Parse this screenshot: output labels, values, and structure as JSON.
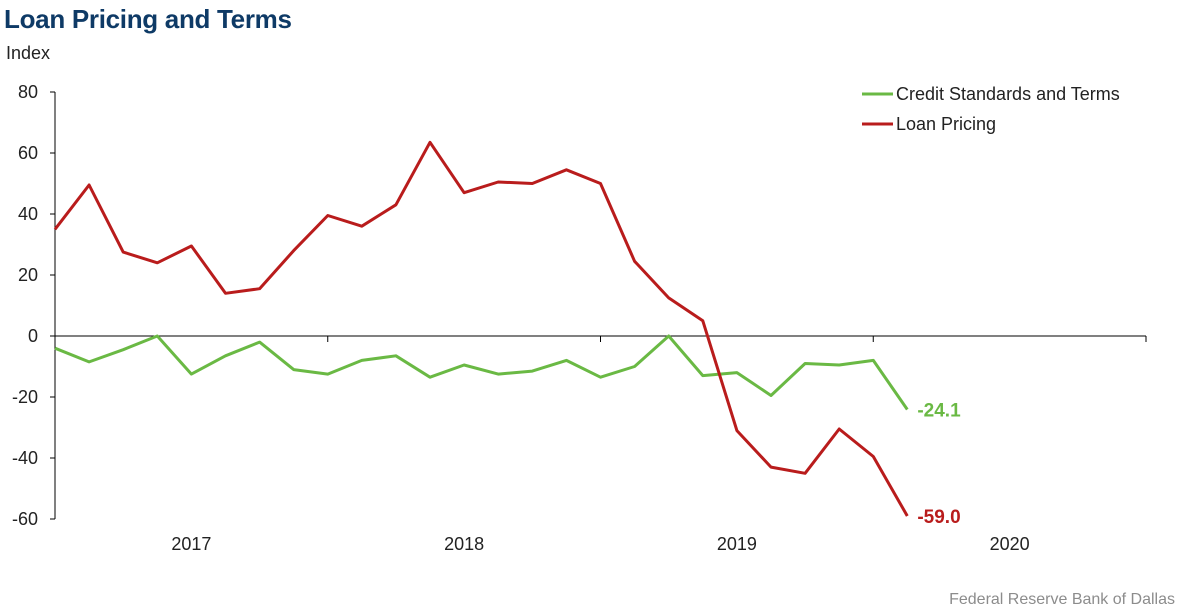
{
  "header": {
    "title": "Loan Pricing and Terms",
    "unit": "Index"
  },
  "footer": {
    "source": "Federal Reserve Bank of Dallas"
  },
  "chart_data": {
    "type": "line",
    "ylim": [
      -60,
      80
    ],
    "yticks": [
      80,
      60,
      40,
      20,
      0,
      -20,
      -40,
      -60
    ],
    "xlim": [
      2016.5,
      2020.5
    ],
    "xticks": [
      {
        "label": "2017",
        "x": 2017.0
      },
      {
        "label": "2018",
        "x": 2018.0
      },
      {
        "label": "2019",
        "x": 2019.0
      },
      {
        "label": "2020",
        "x": 2020.0
      }
    ],
    "grid": false,
    "legend": "top-right",
    "series": [
      {
        "name": "Credit Standards and Terms",
        "color": "#6ab944",
        "end_label": "-24.1",
        "x": [
          2016.5,
          2016.625,
          2016.75,
          2016.875,
          2017.0,
          2017.125,
          2017.25,
          2017.375,
          2017.5,
          2017.625,
          2017.75,
          2017.875,
          2018.0,
          2018.125,
          2018.25,
          2018.375,
          2018.5,
          2018.625,
          2018.75,
          2018.875,
          2019.0,
          2019.125,
          2019.25,
          2019.375,
          2019.5,
          2019.625
        ],
        "values": [
          -4.0,
          -8.5,
          -4.5,
          0.0,
          -12.5,
          -6.5,
          -2.0,
          -11.0,
          -12.5,
          -8.0,
          -6.5,
          -13.5,
          -9.5,
          -12.5,
          -11.5,
          -8.0,
          -13.5,
          -10.0,
          0.0,
          -13.0,
          -12.0,
          -19.5,
          -9.0,
          -9.5,
          -8.0,
          -24.1
        ]
      },
      {
        "name": "Loan Pricing",
        "color": "#b91c1c",
        "end_label": "-59.0",
        "x": [
          2016.5,
          2016.625,
          2016.75,
          2016.875,
          2017.0,
          2017.125,
          2017.25,
          2017.375,
          2017.5,
          2017.625,
          2017.75,
          2017.875,
          2018.0,
          2018.125,
          2018.25,
          2018.375,
          2018.5,
          2018.625,
          2018.75,
          2018.875,
          2019.0,
          2019.125,
          2019.25,
          2019.375,
          2019.5,
          2019.625
        ],
        "values": [
          35.0,
          49.5,
          27.5,
          24.0,
          29.5,
          14.0,
          15.5,
          28.0,
          39.5,
          36.0,
          43.0,
          63.5,
          47.0,
          50.5,
          50.0,
          54.5,
          50.0,
          24.5,
          12.5,
          5.0,
          -31.0,
          -43.0,
          -45.0,
          -30.5,
          -39.5,
          -59.0
        ]
      }
    ]
  }
}
